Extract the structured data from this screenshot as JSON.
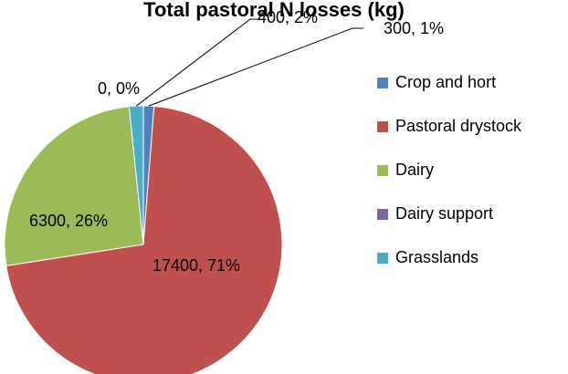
{
  "chart_data": {
    "type": "pie",
    "title": "Total pastoral N losses (kg)",
    "categories": [
      "Crop and hort",
      "Pastoral drystock",
      "Dairy",
      "Dairy support",
      "Grasslands"
    ],
    "values": [
      300,
      17400,
      6300,
      0,
      400
    ],
    "value_labels": [
      "300, 1%",
      "17400, 71%",
      "6300, 26%",
      "0, 0%",
      "400, 2%"
    ],
    "colors": [
      "#4f81bd",
      "#c0504d",
      "#9bbb59",
      "#8064a2",
      "#4bacc6"
    ],
    "legend": "right"
  }
}
